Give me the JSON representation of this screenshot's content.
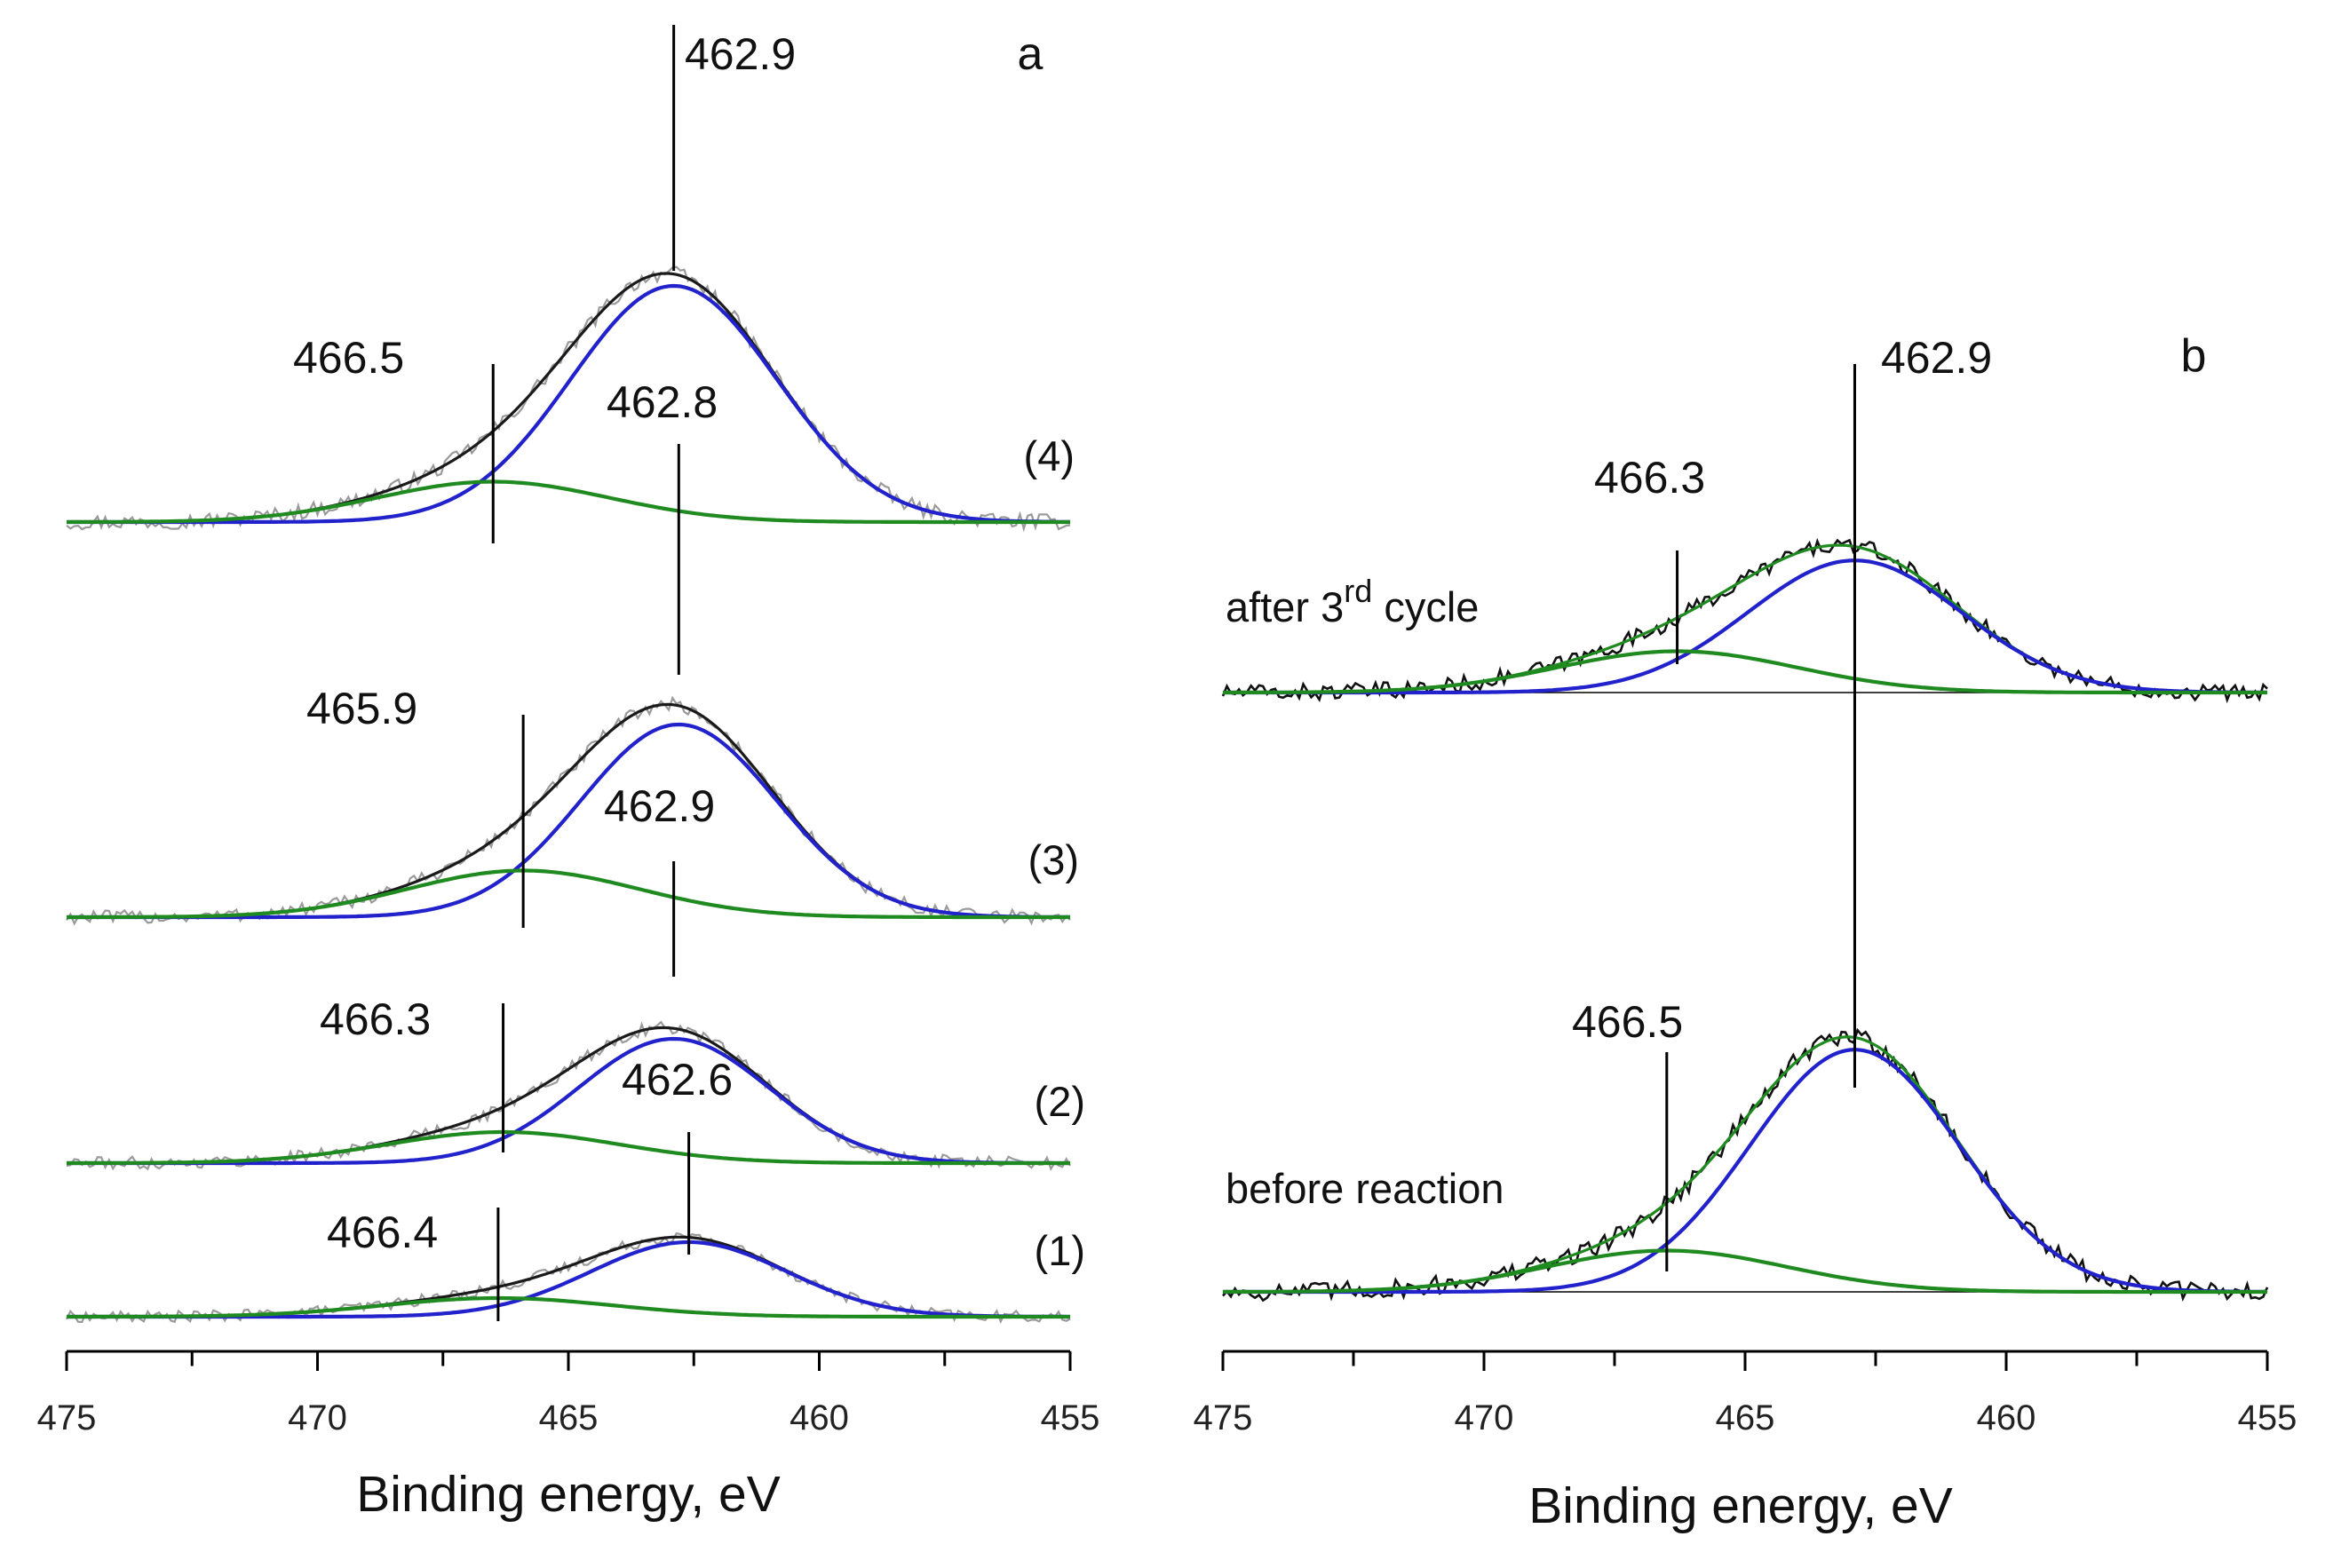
{
  "chart_data": [
    {
      "panel": "a",
      "type": "line",
      "xlabel": "Binding energy, eV",
      "xlim": [
        475,
        455
      ],
      "x_reversed": true,
      "xticks": [
        "475",
        "470",
        "465",
        "460",
        "455"
      ],
      "spectra": [
        {
          "name": "(4)",
          "components": [
            {
              "center": 462.9,
              "height": 76,
              "sigma": 2.05,
              "label": "462.9"
            },
            {
              "center": 466.5,
              "height": 13,
              "sigma": 2.3,
              "label": "466.5"
            }
          ],
          "noise": 2.5
        },
        {
          "name": "(3)",
          "components": [
            {
              "center": 462.8,
              "height": 62,
              "sigma": 1.95,
              "label": "462.8"
            },
            {
              "center": 465.9,
              "height": 15,
              "sigma": 2.3,
              "label": "465.9"
            }
          ],
          "noise": 2.2
        },
        {
          "name": "(2)",
          "components": [
            {
              "center": 462.9,
              "height": 40,
              "sigma": 1.9,
              "label": "462.9"
            },
            {
              "center": 466.3,
              "height": 10,
              "sigma": 2.3,
              "label": "466.3"
            }
          ],
          "noise": 2.0
        },
        {
          "name": "(1)",
          "components": [
            {
              "center": 462.6,
              "height": 24,
              "sigma": 1.95,
              "label": "462.6"
            },
            {
              "center": 466.4,
              "height": 6,
              "sigma": 2.3,
              "label": "466.4"
            }
          ],
          "noise": 1.8
        }
      ],
      "series_colors": {
        "raw": "#9a9a9a",
        "envelope": "#1a1a1a",
        "main": "#2222cc",
        "shoulder": "#1f8a1f"
      }
    },
    {
      "panel": "b",
      "type": "line",
      "xlabel": "Binding energy, eV",
      "xlim": [
        475,
        455
      ],
      "x_reversed": true,
      "xticks": [
        "475",
        "470",
        "465",
        "460",
        "455"
      ],
      "shared_marker": "462.9",
      "spectra": [
        {
          "name": "after 3",
          "name_sup": "rd",
          "name_tail": " cycle",
          "components": [
            {
              "center": 462.9,
              "height": 48,
              "sigma": 2.05,
              "label": "462.9"
            },
            {
              "center": 466.3,
              "height": 15,
              "sigma": 2.3,
              "label": "466.3"
            }
          ],
          "noise": 3.0
        },
        {
          "name": "before reaction",
          "components": [
            {
              "center": 462.9,
              "height": 88,
              "sigma": 2.0,
              "label": ""
            },
            {
              "center": 466.5,
              "height": 15,
              "sigma": 2.3,
              "label": "466.5"
            }
          ],
          "noise": 3.5
        }
      ],
      "series_colors": {
        "raw": "#111111",
        "envelope": "#1f8a1f",
        "main": "#2222cc",
        "shoulder": "#1f8a1f"
      }
    }
  ]
}
